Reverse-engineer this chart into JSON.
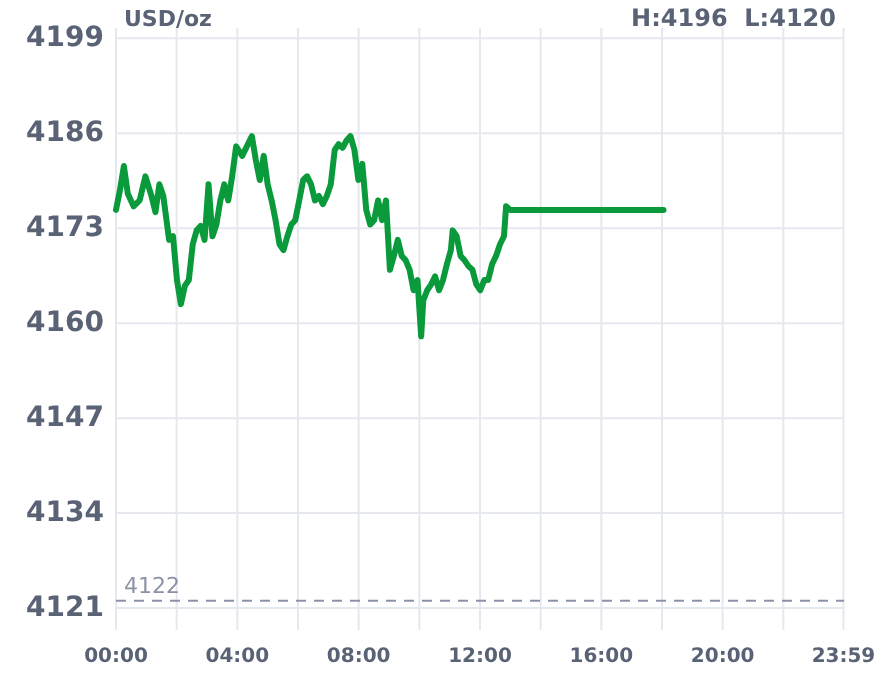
{
  "chart_data": {
    "type": "line",
    "annotations": [
      "USD/oz",
      "H:4196  L:4120"
    ],
    "x": [
      0,
      0.13,
      0.26,
      0.39,
      0.58,
      0.78,
      0.97,
      1.17,
      1.3,
      1.43,
      1.56,
      1.75,
      1.88,
      2.01,
      2.14,
      2.27,
      2.4,
      2.53,
      2.66,
      2.79,
      2.92,
      3.05,
      3.18,
      3.31,
      3.44,
      3.57,
      3.7,
      3.83,
      3.96,
      4.16,
      4.35,
      4.48,
      4.61,
      4.74,
      4.87,
      5.0,
      5.13,
      5.26,
      5.39,
      5.52,
      5.65,
      5.78,
      5.91,
      6.04,
      6.17,
      6.3,
      6.43,
      6.56,
      6.69,
      6.82,
      6.95,
      7.08,
      7.21,
      7.34,
      7.47,
      7.6,
      7.73,
      7.86,
      7.99,
      8.12,
      8.25,
      8.38,
      8.51,
      8.64,
      8.77,
      8.9,
      9.03,
      9.16,
      9.29,
      9.42,
      9.55,
      9.68,
      9.81,
      9.94,
      10.06,
      10.13,
      10.26,
      10.39,
      10.52,
      10.65,
      10.78,
      10.91,
      11.04,
      11.1,
      11.23,
      11.36,
      11.49,
      11.62,
      11.75,
      11.88,
      12.01,
      12.14,
      12.27,
      12.4,
      12.53,
      12.66,
      12.79,
      12.86,
      12.99,
      18.05
    ],
    "series": [
      {
        "color": "#0a9a3c",
        "values": [
          4175.5,
          4178.2,
          4181.5,
          4177.7,
          4176.0,
          4176.8,
          4180.1,
          4177.4,
          4175.2,
          4179.0,
          4177.4,
          4171.4,
          4171.9,
          4165.9,
          4162.6,
          4165.1,
          4165.9,
          4170.8,
          4172.7,
          4173.3,
          4171.4,
          4179.0,
          4171.9,
          4173.5,
          4176.8,
          4179.0,
          4176.8,
          4180.1,
          4184.2,
          4182.9,
          4184.5,
          4185.6,
          4182.3,
          4179.6,
          4182.9,
          4179.0,
          4176.8,
          4174.1,
          4170.8,
          4170.0,
          4171.9,
          4173.5,
          4174.1,
          4176.8,
          4179.6,
          4180.1,
          4179.0,
          4176.8,
          4177.4,
          4176.3,
          4177.4,
          4179.0,
          4183.7,
          4184.5,
          4184.0,
          4185.0,
          4185.6,
          4183.7,
          4179.6,
          4181.8,
          4175.5,
          4173.5,
          4174.1,
          4176.8,
          4174.1,
          4176.8,
          4167.3,
          4169.2,
          4171.4,
          4169.2,
          4168.6,
          4167.3,
          4164.5,
          4165.9,
          4158.2,
          4163.1,
          4164.5,
          4165.3,
          4166.4,
          4164.5,
          4165.9,
          4168.1,
          4170.0,
          4172.7,
          4171.9,
          4169.2,
          4168.6,
          4167.8,
          4167.3,
          4165.3,
          4164.5,
          4165.9,
          4165.9,
          4168.1,
          4169.2,
          4170.8,
          4171.9,
          4176.0,
          4175.5,
          4175.5
        ]
      }
    ],
    "xlim": [
      0,
      24
    ],
    "xticks": [
      {
        "value": 0,
        "label": "00:00"
      },
      {
        "value": 2,
        "label": null
      },
      {
        "value": 4,
        "label": "04:00"
      },
      {
        "value": 6,
        "label": null
      },
      {
        "value": 8,
        "label": "08:00"
      },
      {
        "value": 10,
        "label": null
      },
      {
        "value": 12,
        "label": "12:00"
      },
      {
        "value": 14,
        "label": null
      },
      {
        "value": 16,
        "label": "16:00"
      },
      {
        "value": 18,
        "label": null
      },
      {
        "value": 20,
        "label": "20:00"
      },
      {
        "value": 22,
        "label": null
      },
      {
        "value": 23.983,
        "label": "23:59"
      }
    ],
    "ylim": [
      4118,
      4200.4
    ],
    "yticks": [
      4121,
      4134,
      4147,
      4160,
      4173,
      4186,
      4199
    ],
    "ref_lines": [
      {
        "axis": "y",
        "value": 4122,
        "label": "4122",
        "color": "#8a93a6",
        "line_style": "dashed"
      }
    ],
    "grid": true,
    "marker": "none",
    "line_style": "solid"
  }
}
